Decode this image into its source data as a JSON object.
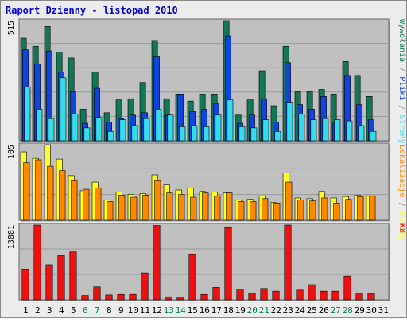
{
  "chart_data": {
    "title": "Raport Dzienny -  listopad 2010",
    "type": "bar",
    "categories": [
      "1",
      "2",
      "3",
      "4",
      "5",
      "6",
      "7",
      "8",
      "9",
      "10",
      "11",
      "12",
      "13",
      "14",
      "15",
      "16",
      "17",
      "18",
      "19",
      "20",
      "21",
      "22",
      "23",
      "24",
      "25",
      "26",
      "27",
      "28",
      "29",
      "30",
      "31"
    ],
    "weekend_days": [
      "6",
      "7",
      "13",
      "14",
      "20",
      "21",
      "27",
      "28"
    ],
    "panels": [
      {
        "id": "top",
        "ymax_label": "515",
        "ymax": 515,
        "series": [
          {
            "name": "Wywołania",
            "color": "#117755",
            "values": [
              440,
              405,
              490,
              380,
              355,
              135,
              295,
              120,
              175,
              180,
              250,
              430,
              180,
              200,
              170,
              200,
              200,
              515,
              110,
              175,
              300,
              150,
              405,
              210,
              210,
              220,
              200,
              340,
              280,
              190,
              0
            ]
          },
          {
            "name": "Pliki",
            "color": "#1144dd",
            "values": [
              390,
              330,
              385,
              295,
              210,
              75,
              225,
              80,
              95,
              110,
              120,
              360,
              110,
              200,
              125,
              135,
              160,
              450,
              75,
              110,
              180,
              80,
              335,
              155,
              135,
              190,
              75,
              280,
              155,
              90,
              0
            ]
          },
          {
            "name": "Strony",
            "color": "#33ddee",
            "values": [
              230,
              135,
              95,
              270,
              115,
              55,
              100,
              40,
              90,
              65,
              95,
              135,
              110,
              60,
              65,
              60,
              110,
              175,
              60,
              55,
              90,
              40,
              165,
              115,
              90,
              95,
              90,
              85,
              65,
              40,
              0
            ]
          }
        ]
      },
      {
        "id": "middle",
        "ymax_label": "105",
        "ymax": 105,
        "series": [
          {
            "name": "Wizyty",
            "color": "#ffff22",
            "values": [
              95,
              86,
              105,
              85,
              62,
              41,
              53,
              28,
              39,
              36,
              37,
              63,
              49,
              42,
              45,
              40,
              39,
              38,
              28,
              29,
              34,
              25,
              66,
              31,
              30,
              40,
              31,
              33,
              35,
              34,
              0
            ]
          },
          {
            "name": "Lokalizacje",
            "color": "#ff8800",
            "values": [
              80,
              84,
              75,
              69,
              55,
              43,
              45,
              26,
              35,
              32,
              35,
              55,
              38,
              36,
              32,
              38,
              34,
              38,
              26,
              26,
              30,
              24,
              53,
              28,
              27,
              31,
              24,
              29,
              33,
              34,
              0
            ]
          }
        ]
      },
      {
        "id": "bottom",
        "ymax_label": "13881",
        "ymax": 13881,
        "series": [
          {
            "name": "KB",
            "color": "#ee1111",
            "values": [
              5700,
              13881,
              6500,
              8200,
              8900,
              790,
              2400,
              900,
              1000,
              1010,
              5000,
              13800,
              560,
              500,
              8400,
              1000,
              2300,
              13400,
              2000,
              1200,
              2100,
              1600,
              13881,
              1800,
              2800,
              1600,
              1600,
              4400,
              1200,
              1200,
              0
            ]
          }
        ]
      }
    ],
    "legend_right": {
      "top": [
        {
          "text": "Wywołania",
          "color": "#117755"
        },
        {
          "text": " / ",
          "color": "#888888"
        },
        {
          "text": "Pliki",
          "color": "#1144dd"
        },
        {
          "text": " / ",
          "color": "#888888"
        },
        {
          "text": "Strony",
          "color": "#33ddee"
        }
      ],
      "middle": [
        {
          "text": "Lokalizacje",
          "color": "#ff8800"
        },
        {
          "text": " / ",
          "color": "#888888"
        },
        {
          "text": "Wizyty",
          "color": "#ffff22"
        }
      ],
      "bottom": [
        {
          "text": "KB",
          "color": "#ee1111"
        }
      ]
    },
    "colors": {
      "title": "#0000cc",
      "plot_bg": "#c0c0c0",
      "frame_bg": "#ececec",
      "weekday_label": "#000000",
      "weekend_label": "#008060"
    }
  }
}
